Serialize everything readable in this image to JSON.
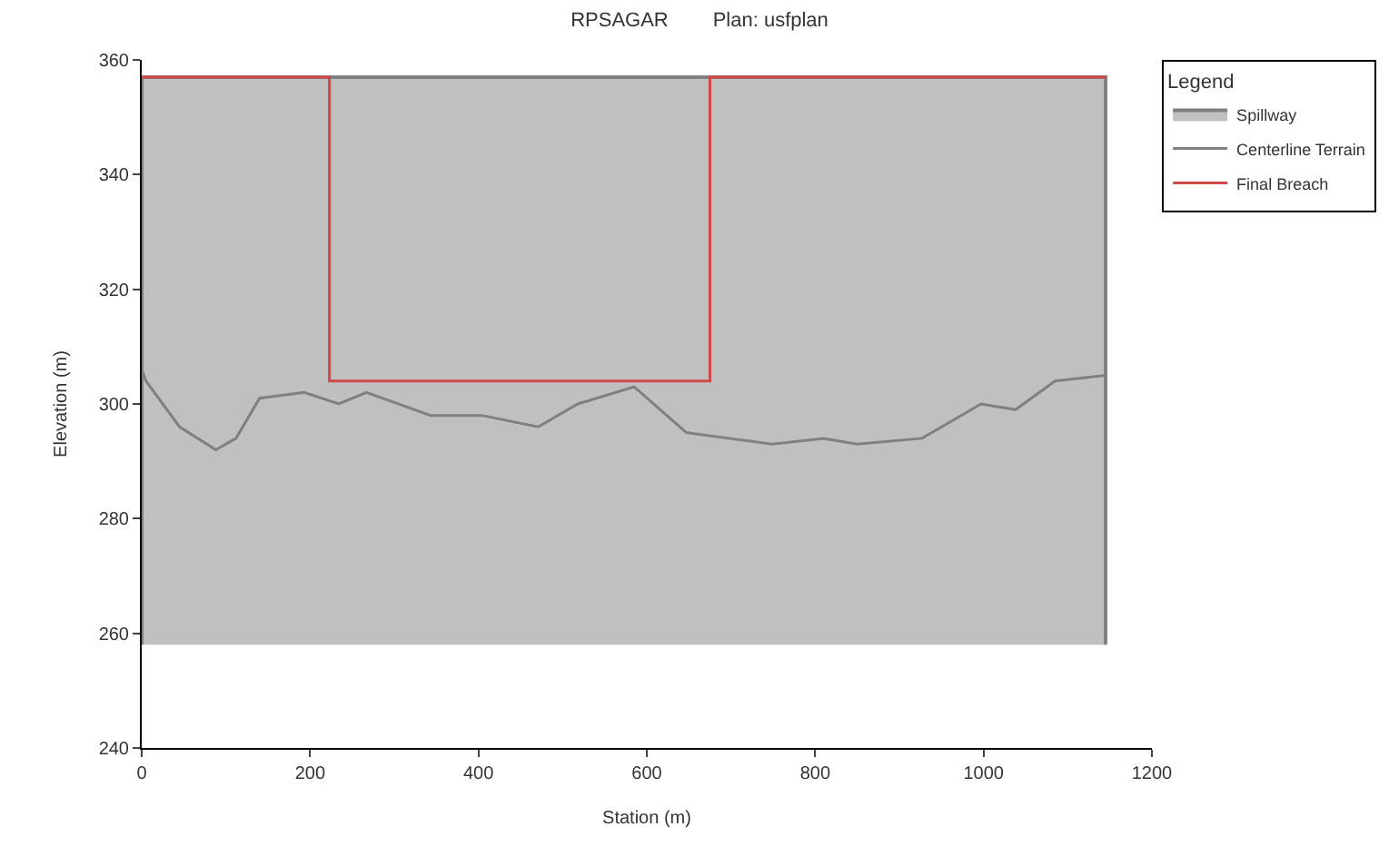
{
  "chart_data": {
    "type": "line",
    "title": "RPSAGAR        Plan: usfplan",
    "xlabel": "Station (m)",
    "ylabel": "Elevation (m)",
    "legend_title": "Legend",
    "xlim": [
      0,
      1200
    ],
    "xticks": [
      0,
      200,
      400,
      600,
      800,
      1000,
      1200
    ],
    "ylim": [
      240,
      360
    ],
    "yticks": [
      240,
      260,
      280,
      300,
      320,
      340,
      360
    ],
    "legend": "top right",
    "marker": "none",
    "line_style": "solid",
    "series": [
      {
        "name": "Spillway",
        "type": "area",
        "color": "#c0c0c0",
        "x": [
          0,
          0,
          1145,
          1145
        ],
        "values": [
          258,
          357,
          357,
          258
        ]
      },
      {
        "name": "Centerline Terrain",
        "color": "#808080",
        "x": [
          0,
          5,
          45,
          88,
          112,
          140,
          193,
          234,
          267,
          343,
          404,
          471,
          518,
          585,
          647,
          749,
          810,
          850,
          927,
          997,
          1038,
          1085,
          1145
        ],
        "values": [
          306,
          304,
          296,
          292,
          294,
          301,
          302,
          300,
          302,
          298,
          298,
          296,
          300,
          303,
          295,
          293,
          294,
          293,
          294,
          300,
          299,
          304,
          305
        ]
      },
      {
        "name": "Final Breach",
        "color": "#d04848",
        "x": [
          0,
          223,
          223,
          675,
          675,
          1145
        ],
        "values": [
          357,
          357,
          304,
          304,
          357,
          357
        ]
      }
    ]
  }
}
